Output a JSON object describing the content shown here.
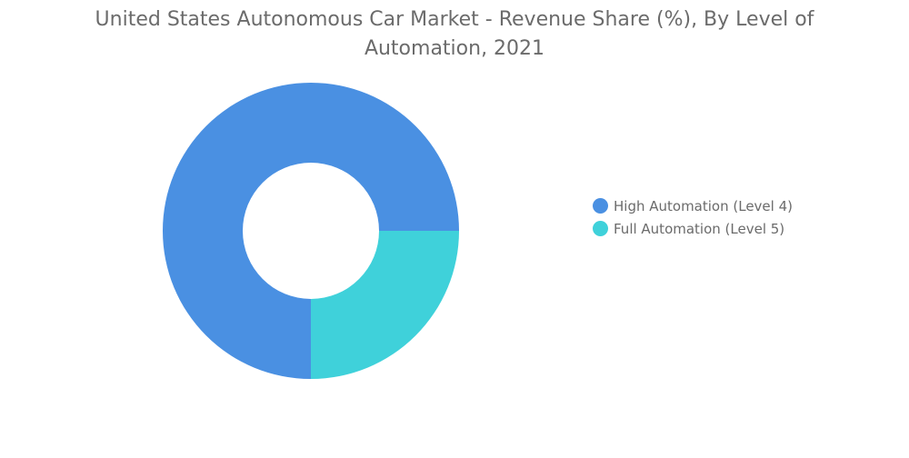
{
  "chart_data": {
    "type": "pie",
    "variant": "donut",
    "title_line1": "United States Autonomous Car Market - Revenue Share (%), By Level of",
    "title_line2": "Automation, 2021",
    "categories": [
      "High Automation (Level 4)",
      "Full Automation (Level 5)"
    ],
    "values": [
      75,
      25
    ],
    "colors": [
      "#4a90e2",
      "#3fd1da"
    ],
    "legend_position": "right",
    "data_labels": false
  }
}
